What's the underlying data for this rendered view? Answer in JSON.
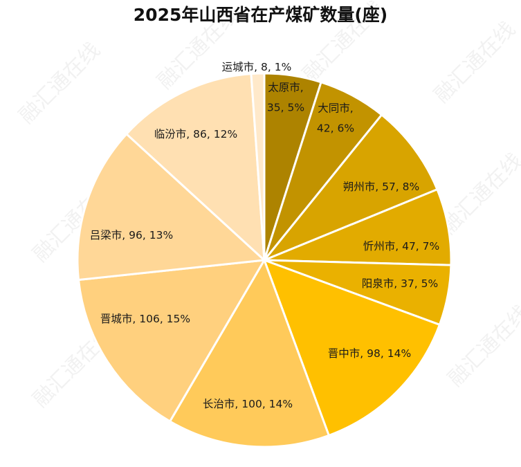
{
  "chart_data": {
    "type": "pie",
    "title": "2025年山西省在产煤矿数量(座)",
    "watermark": "融汇通在线",
    "slices": [
      {
        "label": "太原市, 35, 5%",
        "lines": [
          "太原市,",
          "35, 5%"
        ],
        "value": 35,
        "percent": 5,
        "color": "#AD8300"
      },
      {
        "label": "大同市, 42, 6%",
        "lines": [
          "大同市,",
          "42, 6%"
        ],
        "value": 42,
        "percent": 6,
        "color": "#C29300"
      },
      {
        "label": "朔州市, 57, 8%",
        "lines": [
          "朔州市, 57, 8%"
        ],
        "value": 57,
        "percent": 8,
        "color": "#D8A400"
      },
      {
        "label": "忻州市, 47, 7%",
        "lines": [
          "忻州市, 47, 7%"
        ],
        "value": 47,
        "percent": 7,
        "color": "#E2AB00"
      },
      {
        "label": "阳泉市, 37, 5%",
        "lines": [
          "阳泉市, 37, 5%"
        ],
        "value": 37,
        "percent": 5,
        "color": "#EAB100"
      },
      {
        "label": "晋中市, 98, 14%",
        "lines": [
          "晋中市, 98, 14%"
        ],
        "value": 98,
        "percent": 14,
        "color": "#FFC000"
      },
      {
        "label": "长治市, 100, 14%",
        "lines": [
          "长治市, 100, 14%"
        ],
        "value": 100,
        "percent": 14,
        "color": "#FFCA5A"
      },
      {
        "label": "晋城市, 106, 15%",
        "lines": [
          "晋城市, 106, 15%"
        ],
        "value": 106,
        "percent": 15,
        "color": "#FFD07E"
      },
      {
        "label": "吕梁市, 96, 13%",
        "lines": [
          "吕梁市, 96, 13%"
        ],
        "value": 96,
        "percent": 13,
        "color": "#FFD797"
      },
      {
        "label": "临汾市, 86, 12%",
        "lines": [
          "临汾市, 86, 12%"
        ],
        "value": 86,
        "percent": 12,
        "color": "#FFE0B2"
      },
      {
        "label": "运城市, 8, 1%",
        "lines": [
          "运城市, 8, 1%"
        ],
        "value": 8,
        "percent": 1,
        "color": "#FFE9CA"
      }
    ],
    "legend": "none"
  }
}
